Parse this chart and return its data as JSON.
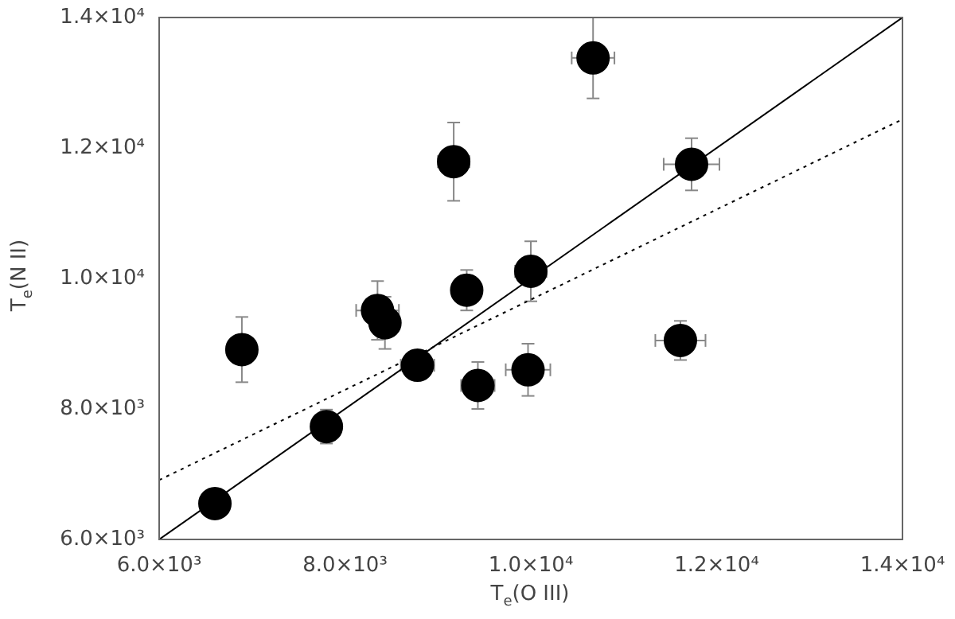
{
  "chart_data": {
    "type": "scatter",
    "xlabel": "T$_{e}$(O III)",
    "ylabel": "T$_{e}$(N II)",
    "marker": "circle",
    "grid": false,
    "legend": false,
    "xlim": [
      6000,
      14000
    ],
    "ylim": [
      6000,
      14000
    ],
    "xticks": [
      {
        "value": 6000,
        "label": "6.0×10³"
      },
      {
        "value": 8000,
        "label": "8.0×10³"
      },
      {
        "value": 10000,
        "label": "1.0×10⁴"
      },
      {
        "value": 12000,
        "label": "1.2×10⁴"
      },
      {
        "value": 14000,
        "label": "1.4×10⁴"
      }
    ],
    "yticks": [
      {
        "value": 6000,
        "label": "6.0×10³"
      },
      {
        "value": 8000,
        "label": "8.0×10³"
      },
      {
        "value": 10000,
        "label": "1.0×10⁴"
      },
      {
        "value": 12000,
        "label": "1.2×10⁴"
      },
      {
        "value": 14000,
        "label": "1.4×10⁴"
      }
    ],
    "series": [
      {
        "type": "scatter",
        "color": "#000000",
        "x": [
          6600,
          6890,
          7800,
          8350,
          8430,
          8780,
          9310,
          9430,
          9170,
          10000,
          9970,
          10670,
          11730,
          11610
        ],
        "values": [
          6550,
          8910,
          7730,
          9510,
          9320,
          8670,
          9820,
          8360,
          11790,
          10110,
          8600,
          13380,
          11750,
          9050
        ],
        "errors": [
          150,
          500,
          260,
          450,
          400,
          220,
          310,
          360,
          600,
          460,
          400,
          620,
          400,
          300
        ],
        "xerrors": [
          120,
          150,
          150,
          230,
          150,
          180,
          150,
          180,
          170,
          170,
          240,
          230,
          300,
          270
        ]
      },
      {
        "type": "line",
        "color": "#000000",
        "line_style": "solid",
        "marker": "none",
        "x": [
          6000,
          14000
        ],
        "values": [
          6000,
          14000
        ]
      },
      {
        "type": "line",
        "color": "#000000",
        "line_style": "dotted",
        "marker": "none",
        "x": [
          6000,
          14000
        ],
        "values": [
          6910,
          12440
        ]
      }
    ]
  }
}
